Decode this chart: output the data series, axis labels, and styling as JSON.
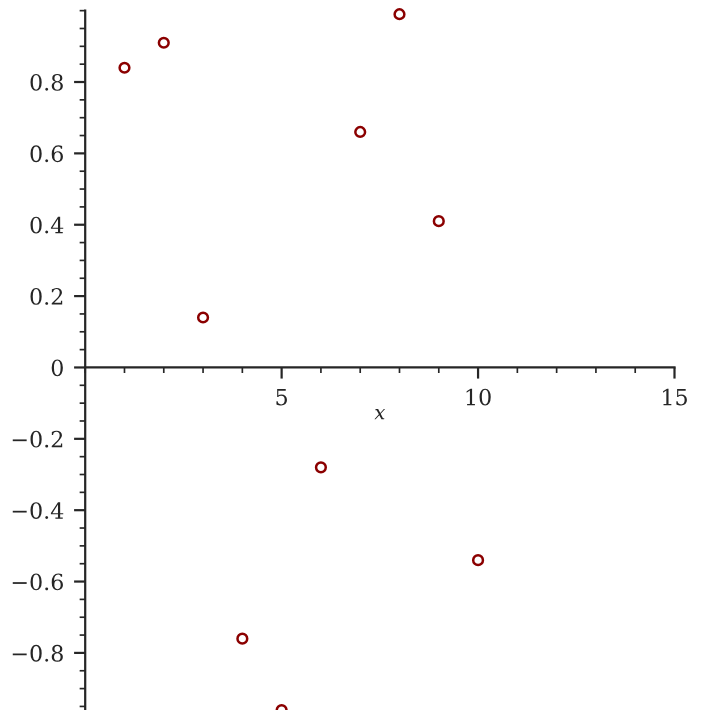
{
  "chart_data": {
    "type": "scatter",
    "xlabel": "x",
    "x": [
      1,
      2,
      3,
      4,
      5,
      6,
      7,
      8,
      9,
      10
    ],
    "series": [
      {
        "color": "#8b0000",
        "values": [
          0.84,
          0.91,
          0.14,
          -0.76,
          -0.96,
          -0.28,
          0.66,
          0.99,
          0.41,
          -0.54
        ]
      }
    ],
    "xlim": [
      0,
      15
    ],
    "ylim": [
      -0.96,
      1.0
    ],
    "xticks": [
      5,
      10,
      15
    ],
    "yticks": [
      -0.8,
      -0.6,
      -0.4,
      -0.2,
      0,
      0.2,
      0.4,
      0.6,
      0.8
    ],
    "marker": "circle",
    "grid": false,
    "legend": false
  }
}
